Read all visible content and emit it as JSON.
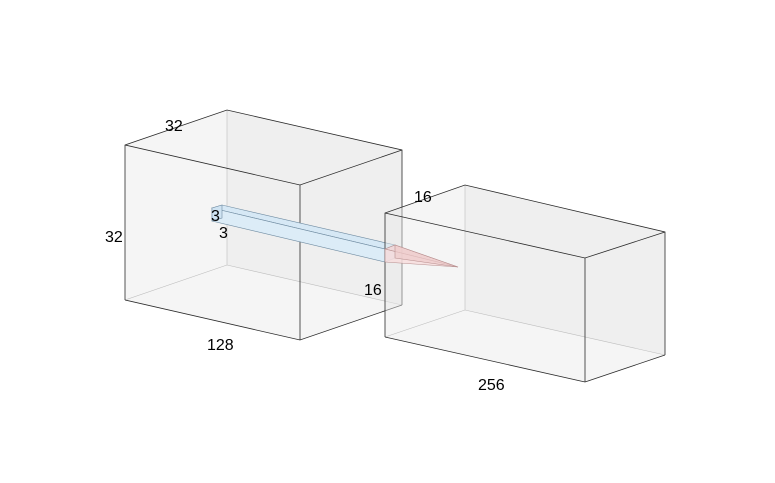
{
  "diagram": {
    "type": "cnn-layer-3d",
    "input_block": {
      "depth_label": "32",
      "height_label": "32",
      "width_label": "128"
    },
    "kernel": {
      "height_label": "3",
      "width_label": "3"
    },
    "output_block": {
      "depth_label": "16",
      "height_label": "16",
      "width_label": "256"
    },
    "colors": {
      "box_face": "#e9e9e9",
      "edge": "#2b2b2b",
      "kernel_fill": "#d6e8f5",
      "kernel_stroke": "#6e8aa0",
      "projection_fill": "#f5d6d6",
      "projection_stroke": "#b89090"
    }
  }
}
